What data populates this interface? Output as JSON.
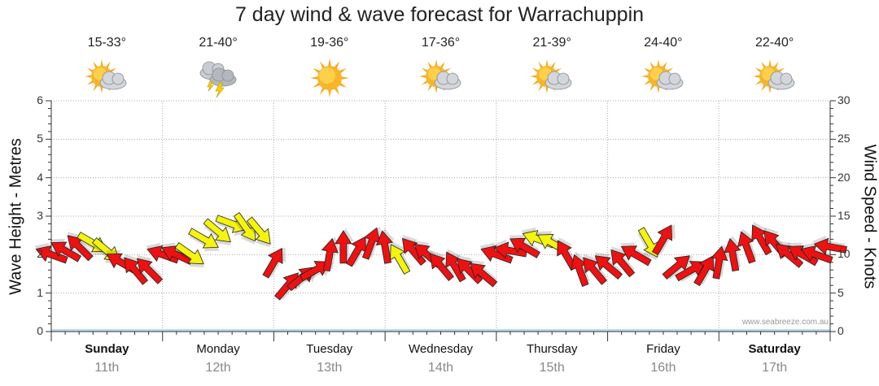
{
  "chart_data": {
    "type": "line",
    "title": "7 day wind & wave forecast for Warrachuppin",
    "ylabel_left": "Wave Height - Metres",
    "ylabel_right": "Wind Speed - Knots",
    "ylim_left": [
      0,
      6
    ],
    "ylim_right": [
      0,
      30
    ],
    "left_ticks": [
      "0",
      "1",
      "2",
      "3",
      "4",
      "5",
      "6"
    ],
    "right_ticks": [
      "0",
      "5",
      "10",
      "15",
      "20",
      "25",
      "30"
    ],
    "days": [
      {
        "name": "Sunday",
        "date": "11th",
        "temp": "15-33°",
        "icon": "partly-cloudy-icon",
        "bold": true
      },
      {
        "name": "Monday",
        "date": "12th",
        "temp": "21-40°",
        "icon": "thunderstorm-icon",
        "bold": false
      },
      {
        "name": "Tuesday",
        "date": "13th",
        "temp": "19-36°",
        "icon": "sunny-icon",
        "bold": false
      },
      {
        "name": "Wednesday",
        "date": "14th",
        "temp": "17-36°",
        "icon": "partly-cloudy-icon",
        "bold": false
      },
      {
        "name": "Thursday",
        "date": "15th",
        "temp": "21-39°",
        "icon": "partly-cloudy-icon",
        "bold": false
      },
      {
        "name": "Friday",
        "date": "16th",
        "temp": "24-40°",
        "icon": "partly-cloudy-icon",
        "bold": false
      },
      {
        "name": "Saturday",
        "date": "17th",
        "temp": "22-40°",
        "icon": "partly-cloudy-icon",
        "bold": true
      }
    ],
    "wind_series": {
      "name": "Wind Speed",
      "units": "knots",
      "x_hours": [
        0,
        3,
        6,
        9,
        12,
        15,
        18,
        21,
        24,
        27,
        30,
        33,
        36,
        39,
        42,
        45,
        48,
        51,
        54,
        57,
        60,
        63,
        66,
        69,
        72,
        75,
        78,
        81,
        84,
        87,
        90,
        93,
        96,
        99,
        102,
        105,
        108,
        111,
        114,
        117,
        120,
        123,
        126,
        129,
        132,
        135,
        138,
        141,
        144,
        147,
        150,
        153,
        156,
        159,
        162,
        165,
        168
      ],
      "values": [
        10,
        10.5,
        11,
        11.5,
        10.5,
        9,
        8,
        8,
        10,
        10,
        10,
        12,
        13,
        14,
        13.5,
        13,
        9,
        6,
        7,
        8,
        10,
        11,
        10.5,
        11.5,
        11,
        9.5,
        10.5,
        10,
        8.5,
        8.5,
        8,
        7.5,
        10,
        10.5,
        11,
        12,
        11.5,
        10,
        8,
        8,
        8.5,
        9,
        10,
        11.5,
        12,
        8.5,
        8,
        8,
        9,
        10,
        11,
        12,
        11.5,
        10,
        10,
        10,
        11
      ]
    },
    "wind_colors": [
      "r",
      "r",
      "r",
      "y",
      "y",
      "r",
      "r",
      "r",
      "r",
      "r",
      "y",
      "y",
      "y",
      "y",
      "y",
      "y",
      "r",
      "r",
      "r",
      "r",
      "r",
      "r",
      "r",
      "r",
      "r",
      "y",
      "r",
      "r",
      "r",
      "r",
      "r",
      "r",
      "r",
      "r",
      "r",
      "y",
      "y",
      "r",
      "r",
      "r",
      "r",
      "r",
      "r",
      "y",
      "r",
      "r",
      "r",
      "r",
      "r",
      "r",
      "r",
      "r",
      "r",
      "r",
      "r",
      "r",
      "r"
    ],
    "wind_angles": [
      200,
      210,
      225,
      30,
      40,
      210,
      230,
      225,
      200,
      205,
      35,
      30,
      40,
      20,
      55,
      50,
      300,
      310,
      320,
      330,
      280,
      270,
      300,
      290,
      260,
      240,
      230,
      220,
      230,
      240,
      225,
      220,
      200,
      190,
      210,
      200,
      210,
      240,
      250,
      230,
      220,
      230,
      210,
      60,
      300,
      320,
      330,
      300,
      280,
      260,
      250,
      240,
      230,
      220,
      210,
      200,
      190
    ],
    "wind_color_legend": {
      "r": "#ee1111",
      "y": "#f4f40c"
    },
    "wave_color": "#b9dcef"
  },
  "credit": "www.seabreeze.com.au"
}
